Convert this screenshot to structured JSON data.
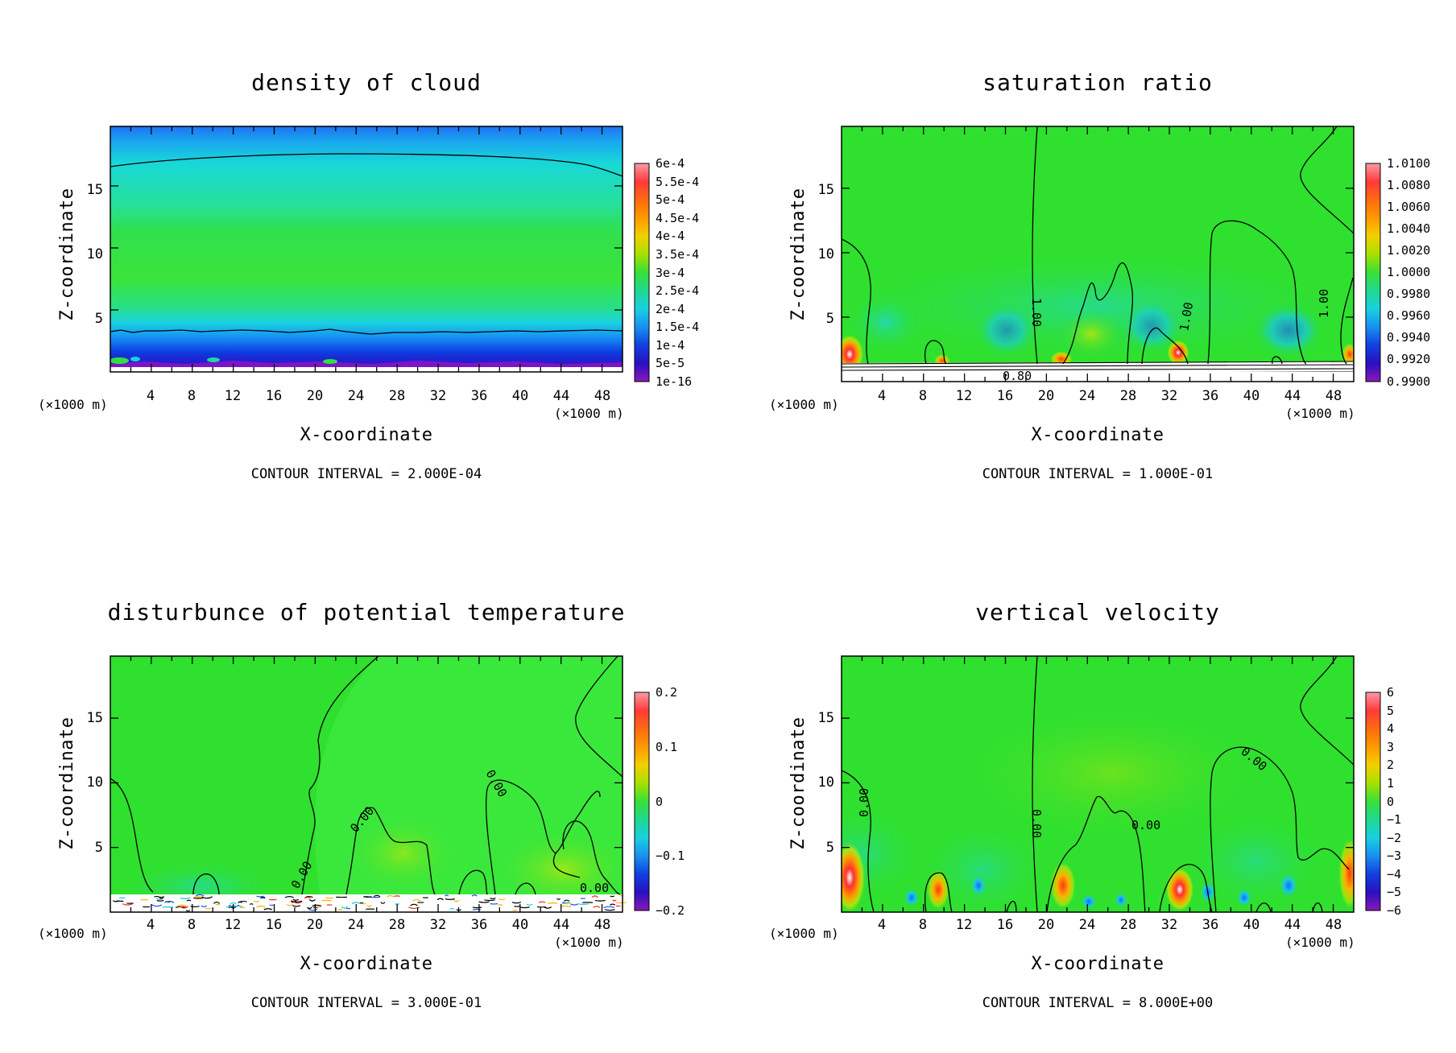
{
  "panels": [
    {
      "title": "density of cloud",
      "xlabel": "X-coordinate",
      "ylabel": "Z-coordinate",
      "xunit_left": "(×1000 m)",
      "xunit_right": "(×1000 m)",
      "xticks": [
        "4",
        "8",
        "12",
        "16",
        "20",
        "24",
        "28",
        "32",
        "36",
        "40",
        "44",
        "48"
      ],
      "yticks": [
        "5",
        "10",
        "15"
      ],
      "colorbar": [
        "6e-4",
        "5.5e-4",
        "5e-4",
        "4.5e-4",
        "4e-4",
        "3.5e-4",
        "3e-4",
        "2.5e-4",
        "2e-4",
        "1.5e-4",
        "1e-4",
        "5e-5",
        "1e-16"
      ],
      "contour_interval": "CONTOUR INTERVAL = 2.000E-04",
      "contour_labels": []
    },
    {
      "title": "saturation ratio",
      "xlabel": "X-coordinate",
      "ylabel": "Z-coordinate",
      "xunit_left": "(×1000 m)",
      "xunit_right": "(×1000 m)",
      "xticks": [
        "4",
        "8",
        "12",
        "16",
        "20",
        "24",
        "28",
        "32",
        "36",
        "40",
        "44",
        "48"
      ],
      "yticks": [
        "5",
        "10",
        "15"
      ],
      "colorbar": [
        "1.0100",
        "1.0080",
        "1.0060",
        "1.0040",
        "1.0020",
        "1.0000",
        "0.9980",
        "0.9960",
        "0.9940",
        "0.9920",
        "0.9900"
      ],
      "contour_interval": "CONTOUR INTERVAL = 1.000E-01",
      "contour_labels": [
        "1.00",
        "1.00",
        "1.00",
        "0.80"
      ]
    },
    {
      "title": "disturbunce of potential temperature",
      "xlabel": "X-coordinate",
      "ylabel": "Z-coordinate",
      "xunit_left": "(×1000 m)",
      "xunit_right": "(×1000 m)",
      "xticks": [
        "4",
        "8",
        "12",
        "16",
        "20",
        "24",
        "28",
        "32",
        "36",
        "40",
        "44",
        "48"
      ],
      "yticks": [
        "5",
        "10",
        "15"
      ],
      "colorbar": [
        "0.2",
        "0.1",
        "0",
        "−0.1",
        "−0.2"
      ],
      "contour_interval": "CONTOUR INTERVAL = 3.000E-01",
      "contour_labels": [
        "0.00",
        "0.00",
        "0.00",
        "0.00"
      ]
    },
    {
      "title": "vertical velocity",
      "xlabel": "X-coordinate",
      "ylabel": "Z-coordinate",
      "xunit_left": "(×1000 m)",
      "xunit_right": "(×1000 m)",
      "xticks": [
        "4",
        "8",
        "12",
        "16",
        "20",
        "24",
        "28",
        "32",
        "36",
        "40",
        "44",
        "48"
      ],
      "yticks": [
        "5",
        "10",
        "15"
      ],
      "colorbar": [
        "6",
        "5",
        "4",
        "3",
        "2",
        "1",
        "0",
        "−1",
        "−2",
        "−3",
        "−4",
        "−5",
        "−6"
      ],
      "contour_interval": "CONTOUR INTERVAL = 8.000E+00",
      "contour_labels": [
        "0.00",
        "0.00",
        "0.00",
        "0.00"
      ]
    }
  ],
  "chart_data": [
    {
      "type": "heatmap",
      "title": "density of cloud",
      "xlabel": "X-coordinate",
      "ylabel": "Z-coordinate",
      "xlim": [
        0,
        50
      ],
      "ylim": [
        0,
        19.8
      ],
      "colorbar_range": [
        1e-16,
        0.0006
      ],
      "colors": {
        "background": "#2fe02f",
        "upper": "#17c8e6",
        "top": "#1660f5",
        "low": "#0a2fd8",
        "bottom": "#7a16c8"
      },
      "contours": [
        {
          "level": 0.0002,
          "z": [
            16.6,
            17.1,
            17.5,
            17.7,
            17.8,
            17.8,
            17.8,
            17.7,
            17.5,
            17.2,
            16.8,
            16.1
          ]
        },
        {
          "level": 0.0002,
          "z": [
            4.1,
            3.8,
            3.8,
            3.9,
            4.0,
            4.2,
            3.8,
            4.0,
            3.9,
            4.0,
            4.1,
            4.2
          ]
        }
      ],
      "grid": false,
      "legend": "colorbar-right"
    },
    {
      "type": "heatmap",
      "title": "saturation ratio",
      "xlabel": "X-coordinate",
      "ylabel": "Z-coordinate",
      "xlim": [
        0,
        50
      ],
      "ylim": [
        0,
        19.8
      ],
      "colorbar_range": [
        0.99,
        1.01
      ],
      "colors": {
        "background": "#2fe02f",
        "near_surface_low": "#17a8f0",
        "hot": "#ff2020"
      },
      "contours": [
        {
          "level": 1.0,
          "label": "1.00"
        },
        {
          "level": 0.8,
          "label": "0.80"
        }
      ],
      "grid": false,
      "legend": "colorbar-right"
    },
    {
      "type": "heatmap",
      "title": "disturbunce of potential temperature",
      "xlabel": "X-coordinate",
      "ylabel": "Z-coordinate",
      "xlim": [
        0,
        50
      ],
      "ylim": [
        0,
        19.8
      ],
      "colorbar_range": [
        -0.2,
        0.2
      ],
      "colors": {
        "background": "#2fe02f",
        "right_region": "#37e63a"
      },
      "contours": [
        {
          "level": 0.0,
          "label": "0.00"
        }
      ],
      "grid": false,
      "legend": "colorbar-right"
    },
    {
      "type": "heatmap",
      "title": "vertical velocity",
      "xlabel": "X-coordinate",
      "ylabel": "Z-coordinate",
      "xlim": [
        0,
        50
      ],
      "ylim": [
        0,
        19.8
      ],
      "colorbar_range": [
        -6,
        6
      ],
      "colors": {
        "background": "#2fe02f",
        "updraft": "#ff2020",
        "downdraft": "#1e7cf0"
      },
      "contours": [
        {
          "level": 0.0,
          "label": "0.00"
        }
      ],
      "grid": false,
      "legend": "colorbar-right"
    }
  ]
}
